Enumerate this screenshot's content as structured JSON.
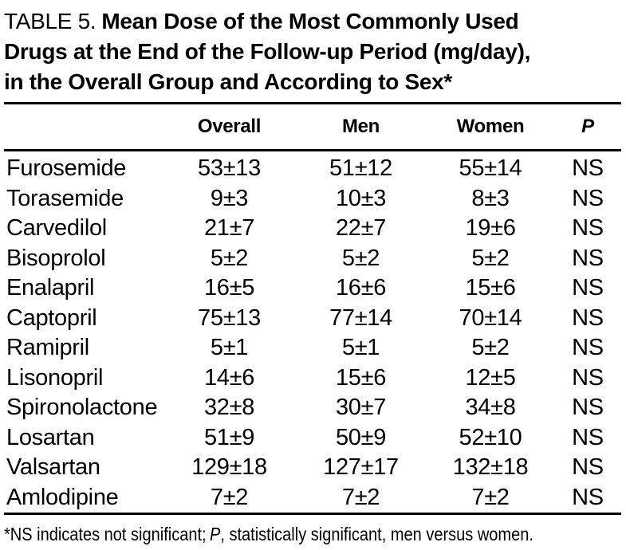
{
  "title": {
    "label": "TABLE 5.",
    "line1_rest": "Mean Dose of the Most Commonly Used",
    "line2": "Drugs at the End of the Follow-up Period (mg/day),",
    "line3": "in the Overall Group and According to Sex*"
  },
  "table": {
    "columns": {
      "overall": "Overall",
      "men": "Men",
      "women": "Women",
      "p": "P"
    },
    "rows": [
      {
        "drug": "Furosemide",
        "overall": "53±13",
        "men": "51±12",
        "women": "55±14",
        "p": "NS"
      },
      {
        "drug": "Torasemide",
        "overall": "9±3",
        "men": "10±3",
        "women": "8±3",
        "p": "NS"
      },
      {
        "drug": "Carvedilol",
        "overall": "21±7",
        "men": "22±7",
        "women": "19±6",
        "p": "NS"
      },
      {
        "drug": "Bisoprolol",
        "overall": "5±2",
        "men": "5±2",
        "women": "5±2",
        "p": "NS"
      },
      {
        "drug": "Enalapril",
        "overall": "16±5",
        "men": "16±6",
        "women": "15±6",
        "p": "NS"
      },
      {
        "drug": "Captopril",
        "overall": "75±13",
        "men": "77±14",
        "women": "70±14",
        "p": "NS"
      },
      {
        "drug": "Ramipril",
        "overall": "5±1",
        "men": "5±1",
        "women": "5±2",
        "p": "NS"
      },
      {
        "drug": "Lisonopril",
        "overall": "14±6",
        "men": "15±6",
        "women": "12±5",
        "p": "NS"
      },
      {
        "drug": "Spironolactone",
        "overall": "32±8",
        "men": "30±7",
        "women": "34±8",
        "p": "NS"
      },
      {
        "drug": "Losartan",
        "overall": "51±9",
        "men": "50±9",
        "women": "52±10",
        "p": "NS"
      },
      {
        "drug": "Valsartan",
        "overall": "129±18",
        "men": "127±17",
        "women": "132±18",
        "p": "NS"
      },
      {
        "drug": "Amlodipine",
        "overall": "7±2",
        "men": "7±2",
        "women": "7±2",
        "p": "NS"
      }
    ]
  },
  "footnote": {
    "prefix": "*NS indicates not significant;",
    "p_symbol": "P",
    "suffix": ", statistically significant, men versus women."
  }
}
